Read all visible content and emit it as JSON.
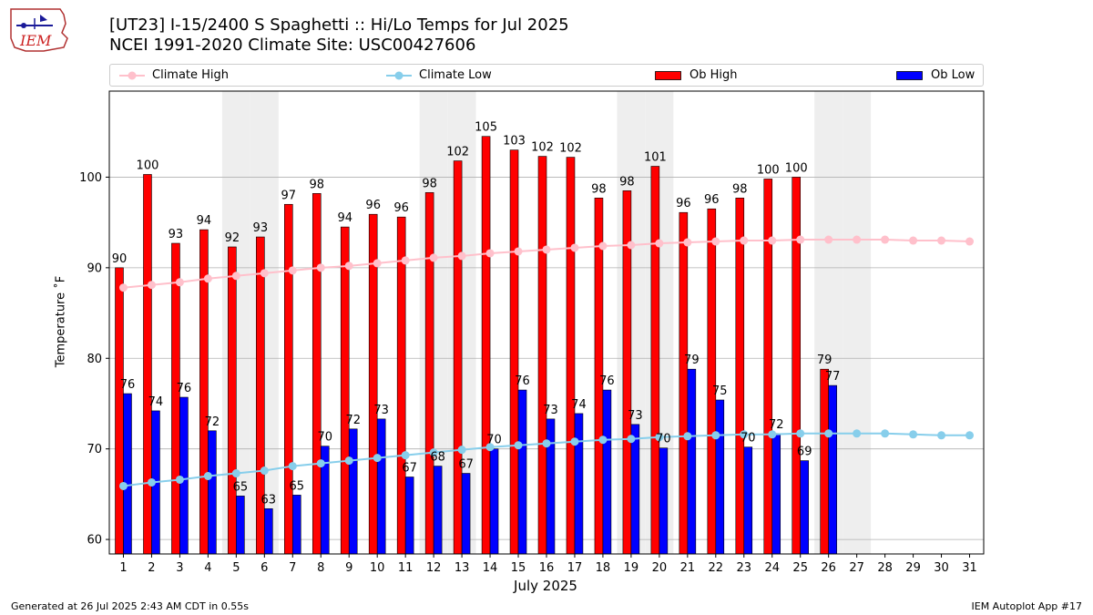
{
  "header": {
    "title_line1": "[UT23] I-15/2400 S Spaghetti  :: Hi/Lo Temps for Jul 2025",
    "title_line2": "NCEI 1991-2020 Climate Site: USC00427606",
    "logo_text": "IEM"
  },
  "legend": {
    "climate_high": "Climate High",
    "climate_low": "Climate Low",
    "ob_high": "Ob High",
    "ob_low": "Ob Low"
  },
  "footer": {
    "left": "Generated at 26 Jul 2025 2:43 AM CDT in 0.55s",
    "right": "IEM Autoplot App #17"
  },
  "colors": {
    "ob_high": "#ff0000",
    "ob_low": "#0000ff",
    "climate_high": "#ffc0cb",
    "climate_low": "#87ceeb",
    "weekend_shade": "#eeeeee",
    "grid": "#b0b0b0"
  },
  "chart_data": {
    "type": "bar",
    "xlabel": "July 2025",
    "ylabel": "Temperature $^\\circ$F",
    "ylabel_display": "Temperature ˚F",
    "xlim": [
      0.5,
      31.5
    ],
    "ylim": [
      58.4,
      109.5
    ],
    "yticks": [
      60,
      70,
      80,
      90,
      100
    ],
    "grid": "horizontal",
    "legend_position": "top",
    "shaded_days": [
      5,
      6,
      12,
      13,
      19,
      20,
      26,
      27
    ],
    "days": [
      1,
      2,
      3,
      4,
      5,
      6,
      7,
      8,
      9,
      10,
      11,
      12,
      13,
      14,
      15,
      16,
      17,
      18,
      19,
      20,
      21,
      22,
      23,
      24,
      25,
      26,
      27,
      28,
      29,
      30,
      31
    ],
    "ob_high": [
      90,
      100.3,
      92.7,
      94.2,
      92.3,
      93.4,
      97,
      98.2,
      94.5,
      95.9,
      95.6,
      98.3,
      101.8,
      104.5,
      103,
      102.3,
      102.2,
      97.7,
      98.5,
      101.2,
      96.1,
      96.5,
      97.7,
      99.8,
      100,
      78.8
    ],
    "ob_high_labels": [
      "90",
      "100",
      "93",
      "94",
      "92",
      "93",
      "97",
      "98",
      "94",
      "96",
      "96",
      "98",
      "102",
      "105",
      "103",
      "102",
      "102",
      "98",
      "98",
      "101",
      "96",
      "96",
      "98",
      "100",
      "100",
      "79"
    ],
    "ob_low": [
      76.1,
      74.2,
      75.7,
      72,
      64.8,
      63.4,
      64.9,
      70.3,
      72.2,
      73.3,
      66.9,
      68.1,
      67.3,
      70,
      76.5,
      73.3,
      73.9,
      76.5,
      72.7,
      70.1,
      78.8,
      75.4,
      70.2,
      71.7,
      68.7,
      77
    ],
    "ob_low_labels": [
      "76",
      "74",
      "76",
      "72",
      "65",
      "63",
      "65",
      "70",
      "72",
      "73",
      "67",
      "68",
      "67",
      "70",
      "76",
      "73",
      "74",
      "76",
      "73",
      "70",
      "79",
      "75",
      "70",
      "72",
      "69",
      "77"
    ],
    "climate_high": [
      87.8,
      88.1,
      88.4,
      88.8,
      89.1,
      89.4,
      89.7,
      90,
      90.2,
      90.5,
      90.8,
      91.1,
      91.3,
      91.6,
      91.8,
      92,
      92.2,
      92.4,
      92.5,
      92.7,
      92.8,
      92.9,
      93,
      93,
      93.1,
      93.1,
      93.1,
      93.1,
      93,
      93,
      92.9
    ],
    "climate_low": [
      65.9,
      66.3,
      66.6,
      67,
      67.3,
      67.6,
      68.1,
      68.4,
      68.7,
      69,
      69.3,
      69.6,
      69.9,
      70.2,
      70.4,
      70.6,
      70.8,
      71,
      71.1,
      71.3,
      71.4,
      71.5,
      71.6,
      71.6,
      71.7,
      71.7,
      71.7,
      71.7,
      71.6,
      71.5,
      71.5
    ]
  }
}
